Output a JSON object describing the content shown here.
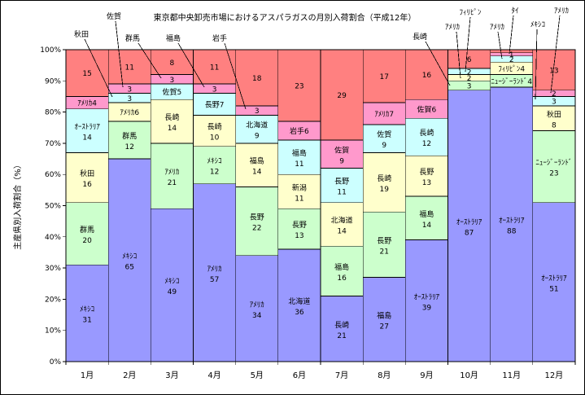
{
  "chart_data": {
    "type": "bar",
    "stacked": "100%",
    "title": "東京都中央卸売市場におけるアスパラガスの月別入荷割合（平成12年）",
    "ylabel": "主産県別入荷割合（%）",
    "xlabel": "",
    "ylim": [
      0,
      100
    ],
    "yticks": [
      "0%",
      "10%",
      "20%",
      "30%",
      "40%",
      "50%",
      "60%",
      "70%",
      "80%",
      "90%",
      "100%"
    ],
    "grid": false,
    "categories": [
      "1月",
      "2月",
      "3月",
      "4月",
      "5月",
      "6月",
      "7月",
      "8月",
      "9月",
      "10月",
      "11月",
      "12月"
    ],
    "colors": {
      "rank": [
        "#9999FF",
        "#CCFFCC",
        "#FFFFCC",
        "#CCFFFF",
        "#FF99CC"
      ],
      "remainder": "#FF8080"
    },
    "bars": [
      [
        {
          "name": "ﾒｷｼｺ",
          "value": 31
        },
        {
          "name": "群馬",
          "value": 20
        },
        {
          "name": "秋田",
          "value": 16
        },
        {
          "name": "ｵｰｽﾄﾗﾘｱ",
          "value": 14
        },
        {
          "name": "ｱﾒﾘｶ",
          "value": 4
        },
        {
          "name": "",
          "value": 15
        }
      ],
      [
        {
          "name": "ﾒｷｼｺ",
          "value": 65
        },
        {
          "name": "群馬",
          "value": 12
        },
        {
          "name": "ｱﾒﾘｶ",
          "value": 6
        },
        {
          "name": "秋田",
          "value": 3
        },
        {
          "name": "佐賀",
          "value": 3
        },
        {
          "name": "",
          "value": 11
        }
      ],
      [
        {
          "name": "ﾒｷｼｺ",
          "value": 49
        },
        {
          "name": "ｱﾒﾘｶ",
          "value": 21
        },
        {
          "name": "長崎",
          "value": 14
        },
        {
          "name": "佐賀",
          "value": 5
        },
        {
          "name": "群馬",
          "value": 3
        },
        {
          "name": "",
          "value": 8
        }
      ],
      [
        {
          "name": "ｱﾒﾘｶ",
          "value": 57
        },
        {
          "name": "ﾒｷｼｺ",
          "value": 12
        },
        {
          "name": "長崎",
          "value": 10
        },
        {
          "name": "長野",
          "value": 7
        },
        {
          "name": "福島",
          "value": 3
        },
        {
          "name": "",
          "value": 11
        }
      ],
      [
        {
          "name": "ｱﾒﾘｶ",
          "value": 34
        },
        {
          "name": "長野",
          "value": 22
        },
        {
          "name": "福島",
          "value": 14
        },
        {
          "name": "北海道",
          "value": 9
        },
        {
          "name": "岩手",
          "value": 3
        },
        {
          "name": "",
          "value": 18
        }
      ],
      [
        {
          "name": "北海道",
          "value": 36
        },
        {
          "name": "長野",
          "value": 13
        },
        {
          "name": "新潟",
          "value": 11
        },
        {
          "name": "福島",
          "value": 11
        },
        {
          "name": "岩手",
          "value": 6
        },
        {
          "name": "",
          "value": 23
        }
      ],
      [
        {
          "name": "長崎",
          "value": 21
        },
        {
          "name": "福島",
          "value": 16
        },
        {
          "name": "北海道",
          "value": 14
        },
        {
          "name": "長野",
          "value": 11
        },
        {
          "name": "佐賀",
          "value": 9
        },
        {
          "name": "",
          "value": 29
        }
      ],
      [
        {
          "name": "福島",
          "value": 27
        },
        {
          "name": "長野",
          "value": 21
        },
        {
          "name": "長崎",
          "value": 19
        },
        {
          "name": "佐賀",
          "value": 9
        },
        {
          "name": "ｱﾒﾘｶ",
          "value": 7
        },
        {
          "name": "",
          "value": 17
        }
      ],
      [
        {
          "name": "ｵｰｽﾄﾗﾘｱ",
          "value": 39
        },
        {
          "name": "福島",
          "value": 14
        },
        {
          "name": "長野",
          "value": 13
        },
        {
          "name": "長崎",
          "value": 12
        },
        {
          "name": "佐賀",
          "value": 6
        },
        {
          "name": "",
          "value": 16
        }
      ],
      [
        {
          "name": "ｵｰｽﾄﾗﾘｱ",
          "value": 87
        },
        {
          "name": "長崎",
          "value": 3
        },
        {
          "name": "ｱﾒﾘｶ",
          "value": 2
        },
        {
          "name": "ﾌｨﾘﾋﾟﾝ",
          "value": 2
        },
        {
          "name": "",
          "value": 6
        }
      ],
      [
        {
          "name": "ｵｰｽﾄﾗﾘｱ",
          "value": 88
        },
        {
          "name": "ﾆｭｰｼﾞｰﾗﾝﾄﾞ",
          "value": 4
        },
        {
          "name": "ﾌｨﾘﾋﾟﾝ",
          "value": 4
        },
        {
          "name": "ｱﾒﾘｶ",
          "value": 2
        },
        {
          "name": "ﾀｲ",
          "value": 1
        },
        {
          "name": "",
          "value": 1
        }
      ],
      [
        {
          "name": "ｵｰｽﾄﾗﾘｱ",
          "value": 51
        },
        {
          "name": "ﾆｭｰｼﾞｰﾗﾝﾄﾞ",
          "value": 23
        },
        {
          "name": "秋田",
          "value": 8
        },
        {
          "name": "ﾒｷｼｺ",
          "value": 3
        },
        {
          "name": "ｱﾒﾘｶ",
          "value": 2
        },
        {
          "name": "",
          "value": 13
        }
      ]
    ]
  }
}
